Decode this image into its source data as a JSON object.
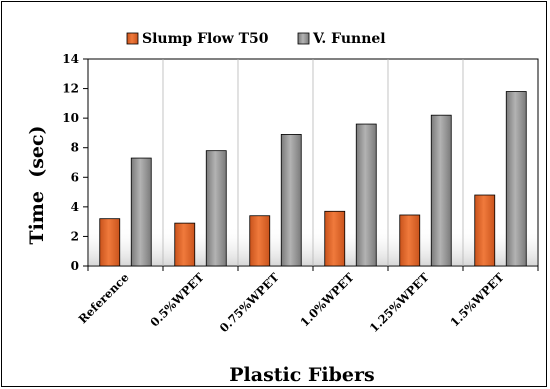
{
  "chart_data": {
    "type": "bar",
    "categories": [
      "Reference",
      "0.5%WPET",
      "0.75%WPET",
      "1.0%WPET",
      "1.25%WPET",
      "1.5%WPET"
    ],
    "series": [
      {
        "name": "Slump Flow T50",
        "values": [
          3.2,
          2.9,
          3.4,
          3.7,
          3.45,
          4.8
        ],
        "color": "#e8692e"
      },
      {
        "name": "V. Funnel",
        "values": [
          7.3,
          7.8,
          8.9,
          9.6,
          10.2,
          11.8
        ],
        "color": "#9c9c9c"
      }
    ],
    "xlabel": "Plastic Fibers",
    "ylabel": "Time  (sec)",
    "ylim": [
      0,
      14
    ],
    "yticks": [
      "0",
      "2",
      "4",
      "6",
      "8",
      "10",
      "12",
      "14"
    ],
    "grid": "vertical",
    "legend_position": "top"
  }
}
